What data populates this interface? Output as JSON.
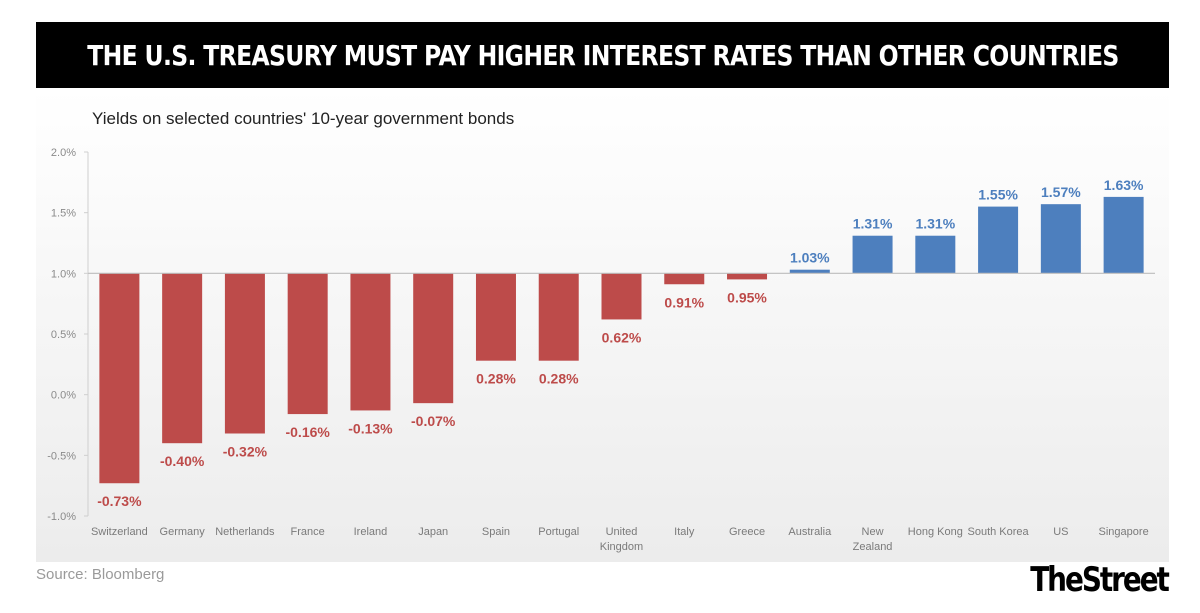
{
  "header": {
    "title": "THE U.S. TREASURY MUST PAY HIGHER INTEREST RATES THAN OTHER COUNTRIES"
  },
  "footer": {
    "source": "Source: Bloomberg",
    "logo": "TheStreet"
  },
  "colors": {
    "negative_bar": "#bd4b4a",
    "positive_bar": "#4d7fbe"
  },
  "chart_data": {
    "type": "bar",
    "title": "Yields on selected countries' 10-year government bonds",
    "xlabel": "",
    "ylabel": "",
    "ylim": [
      -1.0,
      2.0
    ],
    "baseline": 1.0,
    "yticks": [
      "2.0%",
      "1.5%",
      "1.0%",
      "0.5%",
      "0.0%",
      "-0.5%",
      "-1.0%"
    ],
    "ytick_values": [
      2.0,
      1.5,
      1.0,
      0.5,
      0.0,
      -0.5,
      -1.0
    ],
    "categories": [
      "Switzerland",
      "Germany",
      "Netherlands",
      "France",
      "Ireland",
      "Japan",
      "Spain",
      "Portugal",
      "United\nKingdom",
      "Italy",
      "Greece",
      "Australia",
      "New\nZealand",
      "Hong Kong",
      "South Korea",
      "US",
      "Singapore"
    ],
    "values": [
      -0.73,
      -0.4,
      -0.32,
      -0.16,
      -0.13,
      -0.07,
      0.28,
      0.28,
      0.62,
      0.91,
      0.95,
      1.03,
      1.31,
      1.31,
      1.55,
      1.57,
      1.63
    ],
    "labels": [
      "-0.73%",
      "-0.40%",
      "-0.32%",
      "-0.16%",
      "-0.13%",
      "-0.07%",
      "0.28%",
      "0.28%",
      "0.62%",
      "0.91%",
      "0.95%",
      "1.03%",
      "1.31%",
      "1.31%",
      "1.55%",
      "1.57%",
      "1.63%"
    ]
  }
}
